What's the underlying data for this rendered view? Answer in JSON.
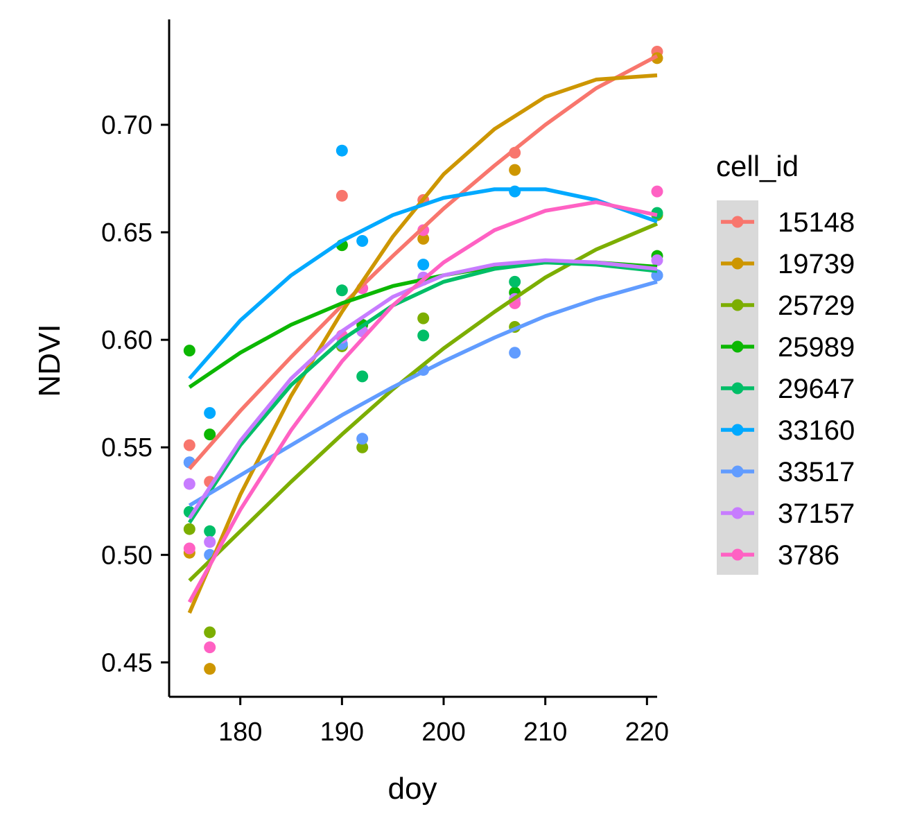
{
  "chart_data": {
    "type": "scatter",
    "xlabel": "doy",
    "ylabel": "NDVI",
    "xlim": [
      173,
      221
    ],
    "ylim": [
      0.434,
      0.749
    ],
    "xticks": [
      180,
      190,
      200,
      210,
      220
    ],
    "yticks": [
      0.45,
      0.5,
      0.55,
      0.6,
      0.65,
      0.7
    ],
    "xtick_labels": [
      "180",
      "190",
      "200",
      "210",
      "220"
    ],
    "ytick_labels": [
      "0.45",
      "0.50",
      "0.55",
      "0.60",
      "0.65",
      "0.70"
    ],
    "grid": false,
    "legend_title": "cell_id",
    "legend_position": "right",
    "series": [
      {
        "name": "15148",
        "color": "#F8766D",
        "points": [
          [
            175,
            0.551
          ],
          [
            177,
            0.534
          ],
          [
            190,
            0.667
          ],
          [
            198,
            0.665
          ],
          [
            207,
            0.687
          ],
          [
            221,
            0.734
          ]
        ],
        "fit": [
          [
            175,
            0.54
          ],
          [
            180,
            0.567
          ],
          [
            185,
            0.592
          ],
          [
            190,
            0.616
          ],
          [
            195,
            0.639
          ],
          [
            200,
            0.661
          ],
          [
            205,
            0.681
          ],
          [
            210,
            0.7
          ],
          [
            215,
            0.717
          ],
          [
            221,
            0.732
          ]
        ]
      },
      {
        "name": "19739",
        "color": "#CD9600",
        "points": [
          [
            175,
            0.501
          ],
          [
            177,
            0.447
          ],
          [
            190,
            0.644
          ],
          [
            198,
            0.647
          ],
          [
            207,
            0.679
          ],
          [
            221,
            0.731
          ]
        ],
        "fit": [
          [
            175,
            0.473
          ],
          [
            180,
            0.528
          ],
          [
            185,
            0.574
          ],
          [
            190,
            0.613
          ],
          [
            195,
            0.648
          ],
          [
            200,
            0.677
          ],
          [
            205,
            0.698
          ],
          [
            210,
            0.713
          ],
          [
            215,
            0.721
          ],
          [
            221,
            0.723
          ]
        ]
      },
      {
        "name": "25729",
        "color": "#7CAE00",
        "points": [
          [
            175,
            0.512
          ],
          [
            177,
            0.464
          ],
          [
            190,
            0.597
          ],
          [
            192,
            0.55
          ],
          [
            198,
            0.61
          ],
          [
            207,
            0.606
          ],
          [
            221,
            0.658
          ]
        ],
        "fit": [
          [
            175,
            0.488
          ],
          [
            180,
            0.511
          ],
          [
            185,
            0.534
          ],
          [
            190,
            0.556
          ],
          [
            195,
            0.577
          ],
          [
            200,
            0.596
          ],
          [
            205,
            0.613
          ],
          [
            210,
            0.629
          ],
          [
            215,
            0.642
          ],
          [
            221,
            0.654
          ]
        ]
      },
      {
        "name": "25989",
        "color": "#0CB702",
        "points": [
          [
            175,
            0.595
          ],
          [
            177,
            0.556
          ],
          [
            190,
            0.644
          ],
          [
            192,
            0.607
          ],
          [
            198,
            0.628
          ],
          [
            207,
            0.622
          ],
          [
            221,
            0.639
          ]
        ],
        "fit": [
          [
            175,
            0.578
          ],
          [
            180,
            0.594
          ],
          [
            185,
            0.607
          ],
          [
            190,
            0.617
          ],
          [
            195,
            0.625
          ],
          [
            200,
            0.63
          ],
          [
            205,
            0.634
          ],
          [
            210,
            0.636
          ],
          [
            215,
            0.636
          ],
          [
            221,
            0.634
          ]
        ]
      },
      {
        "name": "29647",
        "color": "#00BE67",
        "points": [
          [
            175,
            0.52
          ],
          [
            177,
            0.511
          ],
          [
            190,
            0.623
          ],
          [
            192,
            0.583
          ],
          [
            198,
            0.602
          ],
          [
            207,
            0.627
          ],
          [
            221,
            0.659
          ]
        ],
        "fit": [
          [
            175,
            0.515
          ],
          [
            180,
            0.551
          ],
          [
            185,
            0.579
          ],
          [
            190,
            0.6
          ],
          [
            195,
            0.616
          ],
          [
            200,
            0.627
          ],
          [
            205,
            0.633
          ],
          [
            210,
            0.636
          ],
          [
            215,
            0.635
          ],
          [
            221,
            0.632
          ]
        ]
      },
      {
        "name": "33160",
        "color": "#00A9FF",
        "points": [
          [
            175,
            0.543
          ],
          [
            177,
            0.566
          ],
          [
            190,
            0.688
          ],
          [
            192,
            0.646
          ],
          [
            198,
            0.635
          ],
          [
            207,
            0.669
          ],
          [
            221,
            0.63
          ]
        ],
        "fit": [
          [
            175,
            0.582
          ],
          [
            180,
            0.609
          ],
          [
            185,
            0.63
          ],
          [
            190,
            0.646
          ],
          [
            195,
            0.658
          ],
          [
            200,
            0.666
          ],
          [
            205,
            0.67
          ],
          [
            210,
            0.67
          ],
          [
            215,
            0.665
          ],
          [
            221,
            0.655
          ]
        ]
      },
      {
        "name": "33517",
        "color": "#619CFF",
        "points": [
          [
            175,
            0.543
          ],
          [
            177,
            0.5
          ],
          [
            190,
            0.598
          ],
          [
            192,
            0.554
          ],
          [
            198,
            0.586
          ],
          [
            207,
            0.594
          ],
          [
            221,
            0.63
          ]
        ],
        "fit": [
          [
            175,
            0.523
          ],
          [
            180,
            0.537
          ],
          [
            185,
            0.551
          ],
          [
            190,
            0.565
          ],
          [
            195,
            0.578
          ],
          [
            200,
            0.59
          ],
          [
            205,
            0.601
          ],
          [
            210,
            0.611
          ],
          [
            215,
            0.619
          ],
          [
            221,
            0.627
          ]
        ]
      },
      {
        "name": "37157",
        "color": "#C77CFF",
        "points": [
          [
            175,
            0.533
          ],
          [
            177,
            0.506
          ],
          [
            190,
            0.601
          ],
          [
            192,
            0.604
          ],
          [
            198,
            0.629
          ],
          [
            207,
            0.619
          ],
          [
            221,
            0.637
          ]
        ],
        "fit": [
          [
            175,
            0.517
          ],
          [
            180,
            0.553
          ],
          [
            185,
            0.582
          ],
          [
            190,
            0.604
          ],
          [
            195,
            0.62
          ],
          [
            200,
            0.63
          ],
          [
            205,
            0.635
          ],
          [
            210,
            0.637
          ],
          [
            215,
            0.636
          ],
          [
            221,
            0.633
          ]
        ]
      },
      {
        "name": "3786",
        "color": "#FF61C3",
        "points": [
          [
            175,
            0.503
          ],
          [
            177,
            0.457
          ],
          [
            190,
            0.602
          ],
          [
            192,
            0.624
          ],
          [
            198,
            0.651
          ],
          [
            207,
            0.617
          ],
          [
            221,
            0.669
          ]
        ],
        "fit": [
          [
            175,
            0.478
          ],
          [
            180,
            0.521
          ],
          [
            185,
            0.558
          ],
          [
            190,
            0.59
          ],
          [
            195,
            0.616
          ],
          [
            200,
            0.636
          ],
          [
            205,
            0.651
          ],
          [
            210,
            0.66
          ],
          [
            215,
            0.664
          ],
          [
            221,
            0.658
          ]
        ]
      }
    ]
  }
}
